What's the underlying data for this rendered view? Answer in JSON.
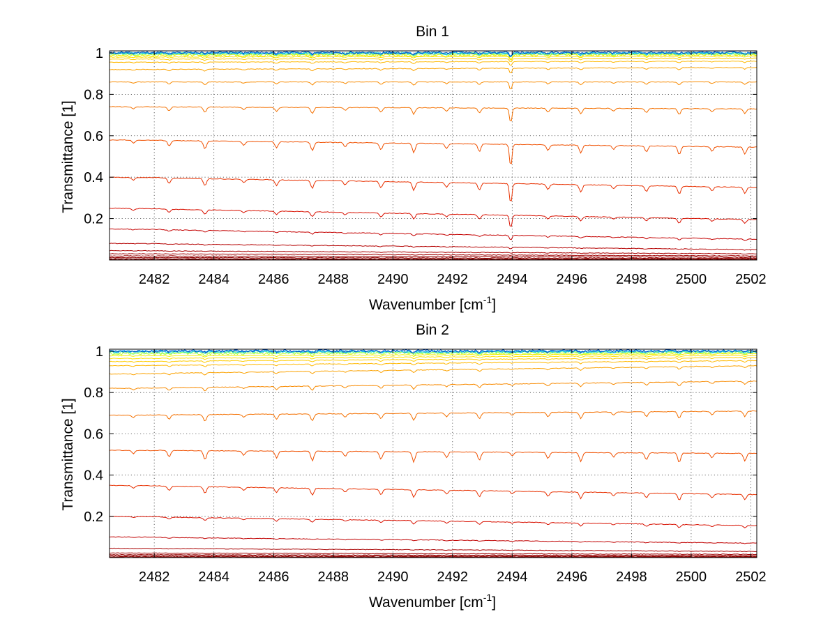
{
  "chart_data": [
    {
      "type": "line",
      "title": "Bin 1",
      "xlabel": "Wavenumber [cm",
      "xlabel_sup": "-1",
      "xlabel_tail": "]",
      "ylabel": "Transmittance [1]",
      "xlim": [
        2480.5,
        2502.2
      ],
      "ylim": [
        0,
        1.01
      ],
      "xticks": [
        2482,
        2484,
        2486,
        2488,
        2490,
        2492,
        2494,
        2496,
        2498,
        2500,
        2502
      ],
      "yticks": [
        0.2,
        0.4,
        0.6,
        0.8,
        1
      ],
      "ytick_labels": [
        "0.2",
        "0.4",
        "0.6",
        "0.8",
        "1"
      ],
      "grid": true,
      "colormap": "jet",
      "absorption_lines": [
        2481.3,
        2482.5,
        2483.7,
        2485.0,
        2486.1,
        2487.3,
        2488.4,
        2489.6,
        2490.7,
        2491.8,
        2492.9,
        2493.95,
        2495.2,
        2496.3,
        2497.4,
        2498.5,
        2499.6,
        2500.7,
        2501.8
      ],
      "series": [
        {
          "start": 0.002,
          "end": 0.002,
          "color": "#800000"
        },
        {
          "start": 0.006,
          "end": 0.004,
          "color": "#870000"
        },
        {
          "start": 0.012,
          "end": 0.008,
          "color": "#8e0000"
        },
        {
          "start": 0.02,
          "end": 0.013,
          "color": "#960000"
        },
        {
          "start": 0.03,
          "end": 0.02,
          "color": "#9f0000"
        },
        {
          "start": 0.045,
          "end": 0.03,
          "color": "#a80000"
        },
        {
          "start": 0.08,
          "end": 0.05,
          "color": "#b40000"
        },
        {
          "start": 0.15,
          "end": 0.1,
          "color": "#c40000"
        },
        {
          "start": 0.25,
          "end": 0.195,
          "color": "#d81000"
        },
        {
          "start": 0.4,
          "end": 0.35,
          "color": "#e83000"
        },
        {
          "start": 0.58,
          "end": 0.545,
          "color": "#f05000"
        },
        {
          "start": 0.74,
          "end": 0.73,
          "color": "#f47000"
        },
        {
          "start": 0.86,
          "end": 0.86,
          "color": "#f88a00"
        },
        {
          "start": 0.92,
          "end": 0.93,
          "color": "#fba200"
        },
        {
          "start": 0.955,
          "end": 0.96,
          "color": "#ffb800"
        },
        {
          "start": 0.97,
          "end": 0.975,
          "color": "#ffcc00"
        },
        {
          "start": 0.98,
          "end": 0.985,
          "color": "#ffe000"
        },
        {
          "start": 0.988,
          "end": 0.99,
          "color": "#f0f000"
        },
        {
          "start": 0.993,
          "end": 0.995,
          "color": "#c0ff30"
        },
        {
          "start": 0.997,
          "end": 0.998,
          "color": "#80ff80"
        },
        {
          "start": 0.999,
          "end": 0.999,
          "color": "#30e0d0"
        },
        {
          "start": 1.0,
          "end": 1.0,
          "color": "#00a0ff"
        },
        {
          "start": 1.002,
          "end": 1.002,
          "color": "#0050c0"
        }
      ]
    },
    {
      "type": "line",
      "title": "Bin 2",
      "xlabel": "Wavenumber [cm",
      "xlabel_sup": "-1",
      "xlabel_tail": "]",
      "ylabel": "Transmittance [1]",
      "xlim": [
        2480.5,
        2502.2
      ],
      "ylim": [
        0,
        1.01
      ],
      "xticks": [
        2482,
        2484,
        2486,
        2488,
        2490,
        2492,
        2494,
        2496,
        2498,
        2500,
        2502
      ],
      "yticks": [
        0.2,
        0.4,
        0.6,
        0.8,
        1
      ],
      "ytick_labels": [
        "0.2",
        "0.4",
        "0.6",
        "0.8",
        "1"
      ],
      "grid": true,
      "colormap": "jet",
      "absorption_lines": [
        2481.3,
        2482.5,
        2483.7,
        2485.0,
        2486.1,
        2487.3,
        2488.4,
        2489.6,
        2490.7,
        2491.8,
        2492.9,
        2494.0,
        2495.2,
        2496.3,
        2497.4,
        2498.5,
        2499.6,
        2500.7,
        2501.8
      ],
      "series": [
        {
          "start": 0.001,
          "end": 0.001,
          "color": "#800000"
        },
        {
          "start": 0.004,
          "end": 0.003,
          "color": "#870000"
        },
        {
          "start": 0.008,
          "end": 0.006,
          "color": "#8e0000"
        },
        {
          "start": 0.014,
          "end": 0.01,
          "color": "#960000"
        },
        {
          "start": 0.022,
          "end": 0.016,
          "color": "#9f0000"
        },
        {
          "start": 0.045,
          "end": 0.03,
          "color": "#a80000"
        },
        {
          "start": 0.1,
          "end": 0.07,
          "color": "#c00000"
        },
        {
          "start": 0.2,
          "end": 0.155,
          "color": "#d81000"
        },
        {
          "start": 0.35,
          "end": 0.305,
          "color": "#e83000"
        },
        {
          "start": 0.52,
          "end": 0.505,
          "color": "#f05000"
        },
        {
          "start": 0.69,
          "end": 0.71,
          "color": "#f47000"
        },
        {
          "start": 0.82,
          "end": 0.855,
          "color": "#f88a00"
        },
        {
          "start": 0.89,
          "end": 0.93,
          "color": "#fba200"
        },
        {
          "start": 0.93,
          "end": 0.955,
          "color": "#ffb800"
        },
        {
          "start": 0.95,
          "end": 0.97,
          "color": "#ffcc00"
        },
        {
          "start": 0.965,
          "end": 0.98,
          "color": "#ffe000"
        },
        {
          "start": 0.978,
          "end": 0.988,
          "color": "#f0f000"
        },
        {
          "start": 0.988,
          "end": 0.994,
          "color": "#c0ff30"
        },
        {
          "start": 0.994,
          "end": 0.997,
          "color": "#80ff80"
        },
        {
          "start": 0.998,
          "end": 0.999,
          "color": "#30e0d0"
        },
        {
          "start": 1.0,
          "end": 1.0,
          "color": "#00a0ff"
        },
        {
          "start": 1.002,
          "end": 1.002,
          "color": "#0050c0"
        }
      ]
    }
  ]
}
